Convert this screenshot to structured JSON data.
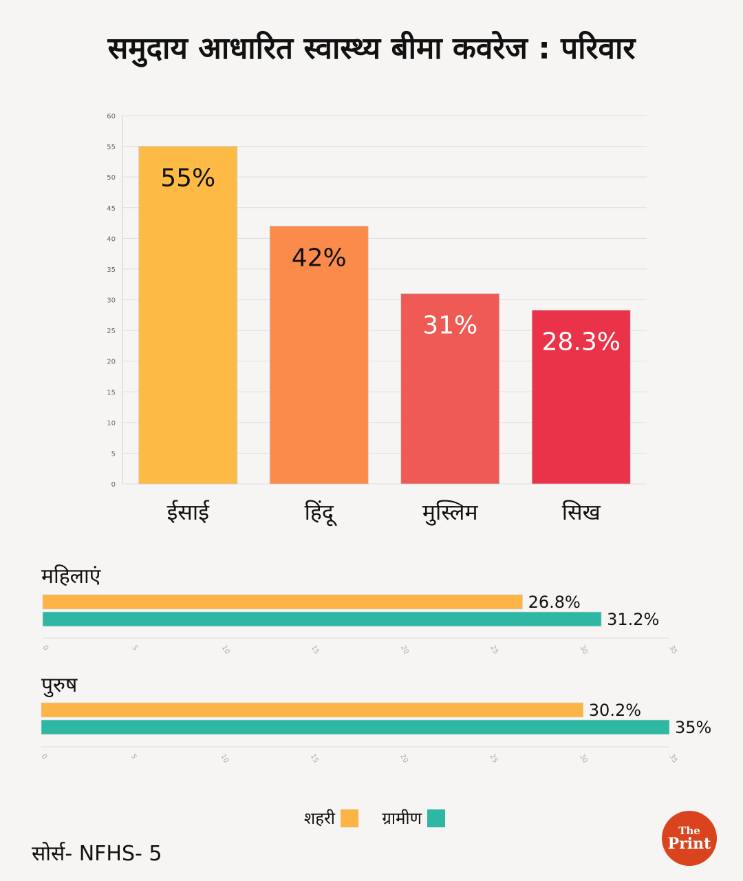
{
  "title": "समुदाय आधारित स्वास्थ्य बीमा कवरेज : परिवार",
  "source": "सोर्स- NFHS- 5",
  "logo": {
    "line1": "The",
    "line2": "Print",
    "color": "#d9441f"
  },
  "chart_data": [
    {
      "type": "bar",
      "categories": [
        "ईसाई",
        "हिंदू",
        "मुस्लिम",
        "सिख"
      ],
      "values": [
        55,
        42,
        31,
        28.3
      ],
      "data_labels": [
        "55%",
        "42%",
        "31%",
        "28.3%"
      ],
      "colors": [
        "#fdbb45",
        "#fb8b4b",
        "#ef5b54",
        "#ea3348"
      ],
      "label_colors": [
        "#111111",
        "#111111",
        "#ffffff",
        "#ffffff"
      ],
      "ylim": [
        0,
        60
      ],
      "yticks": [
        0,
        5,
        10,
        15,
        20,
        25,
        30,
        35,
        40,
        45,
        50,
        55,
        60
      ],
      "grid": true
    },
    {
      "type": "bar",
      "orientation": "horizontal",
      "title": "महिलाएं",
      "series": [
        {
          "name": "शहरी",
          "values": [
            26.8
          ],
          "label": "26.8%"
        },
        {
          "name": "ग्रामीण",
          "values": [
            31.2
          ],
          "label": "31.2%"
        }
      ],
      "xlim": [
        0,
        35
      ],
      "xticks": [
        0,
        5,
        10,
        15,
        20,
        25,
        30,
        35
      ]
    },
    {
      "type": "bar",
      "orientation": "horizontal",
      "title": "पुरुष",
      "series": [
        {
          "name": "शहरी",
          "values": [
            30.2
          ],
          "label": "30.2%"
        },
        {
          "name": "ग्रामीण",
          "values": [
            35
          ],
          "label": "35%"
        }
      ],
      "xlim": [
        0,
        35
      ],
      "xticks": [
        0,
        5,
        10,
        15,
        20,
        25,
        30,
        35
      ]
    }
  ],
  "legend": [
    {
      "name": "शहरी",
      "color": "#fbb445"
    },
    {
      "name": "ग्रामीण",
      "color": "#2eb8a3"
    }
  ]
}
